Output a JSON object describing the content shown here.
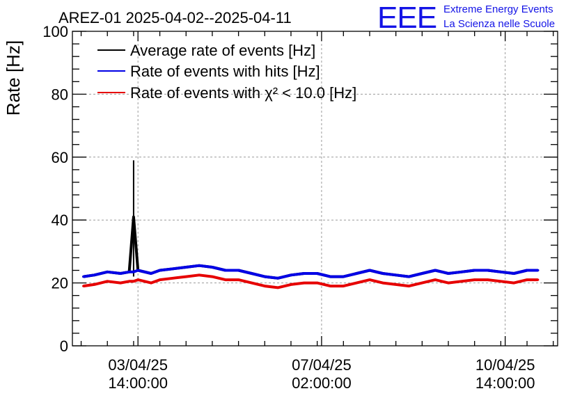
{
  "header": {
    "title": "AREZ-01 2025-04-02--2025-04-11",
    "logo_text": "EEE",
    "logo_line1": "Extreme Energy Events",
    "logo_line2": "La Scienza nelle Scuole"
  },
  "colors": {
    "average": "#000000",
    "hits": "#0000e6",
    "chi2": "#e60000",
    "logo": "#1414e6"
  },
  "chart_data": {
    "type": "line",
    "title": "AREZ-01 2025-04-02--2025-04-11",
    "ylabel": "Rate [Hz]",
    "xlabel": "",
    "ylim": [
      0,
      100
    ],
    "yticks": [
      "0",
      "20",
      "40",
      "60",
      "80",
      "100"
    ],
    "xlim": [
      "2025-04-02T08:00",
      "2025-04-11T14:00"
    ],
    "xticks": [
      {
        "time": "2025-04-03T14:00",
        "date": "03/04/25",
        "clock": "14:00:00"
      },
      {
        "time": "2025-04-07T02:00",
        "date": "07/04/25",
        "clock": "02:00:00"
      },
      {
        "time": "2025-04-10T14:00",
        "date": "10/04/25",
        "clock": "14:00:00"
      }
    ],
    "grid": true,
    "legend_position": "top-left",
    "x_time": [
      "2025-04-02T13:00",
      "2025-04-02T18:00",
      "2025-04-03T00:00",
      "2025-04-03T06:00",
      "2025-04-03T10:00",
      "2025-04-03T12:00",
      "2025-04-03T14:00",
      "2025-04-03T20:00",
      "2025-04-04T00:00",
      "2025-04-04T06:00",
      "2025-04-04T12:00",
      "2025-04-04T18:00",
      "2025-04-05T00:00",
      "2025-04-05T06:00",
      "2025-04-05T12:00",
      "2025-04-05T18:00",
      "2025-04-06T00:00",
      "2025-04-06T06:00",
      "2025-04-06T12:00",
      "2025-04-06T18:00",
      "2025-04-07T00:00",
      "2025-04-07T06:00",
      "2025-04-07T12:00",
      "2025-04-07T18:00",
      "2025-04-08T00:00",
      "2025-04-08T06:00",
      "2025-04-08T12:00",
      "2025-04-08T18:00",
      "2025-04-09T00:00",
      "2025-04-09T06:00",
      "2025-04-09T12:00",
      "2025-04-09T18:00",
      "2025-04-10T00:00",
      "2025-04-10T06:00",
      "2025-04-10T12:00",
      "2025-04-10T18:00",
      "2025-04-11T00:00",
      "2025-04-11T05:00"
    ],
    "series": [
      {
        "name": "Average rate of events [Hz]",
        "color": "#000000",
        "values": [
          22.0,
          22.5,
          23.5,
          23.0,
          23.5,
          41.0,
          24.0,
          23.0,
          24.0,
          24.5,
          25.0,
          25.5,
          25.0,
          24.0,
          24.0,
          23.0,
          22.0,
          21.5,
          22.5,
          23.0,
          23.0,
          22.0,
          22.0,
          23.0,
          24.0,
          23.0,
          22.5,
          22.0,
          23.0,
          24.0,
          23.0,
          23.5,
          24.0,
          24.0,
          23.5,
          23.0,
          24.0,
          24.0
        ],
        "spike": {
          "time": "2025-04-03T12:00",
          "max": 59
        }
      },
      {
        "name": "Rate of events with hits [Hz]",
        "color": "#0000e6",
        "values": [
          22.0,
          22.5,
          23.5,
          23.0,
          23.5,
          23.5,
          24.0,
          23.0,
          24.0,
          24.5,
          25.0,
          25.5,
          25.0,
          24.0,
          24.0,
          23.0,
          22.0,
          21.5,
          22.5,
          23.0,
          23.0,
          22.0,
          22.0,
          23.0,
          24.0,
          23.0,
          22.5,
          22.0,
          23.0,
          24.0,
          23.0,
          23.5,
          24.0,
          24.0,
          23.5,
          23.0,
          24.0,
          24.0
        ]
      },
      {
        "name": "Rate of events with χ² < 10.0 [Hz]",
        "color": "#e60000",
        "values": [
          19.0,
          19.5,
          20.5,
          20.0,
          20.5,
          20.5,
          21.0,
          20.0,
          21.0,
          21.5,
          22.0,
          22.5,
          22.0,
          21.0,
          21.0,
          20.0,
          19.0,
          18.5,
          19.5,
          20.0,
          20.0,
          19.0,
          19.0,
          20.0,
          21.0,
          20.0,
          19.5,
          19.0,
          20.0,
          21.0,
          20.0,
          20.5,
          21.0,
          21.0,
          20.5,
          20.0,
          21.0,
          21.0
        ]
      }
    ]
  }
}
